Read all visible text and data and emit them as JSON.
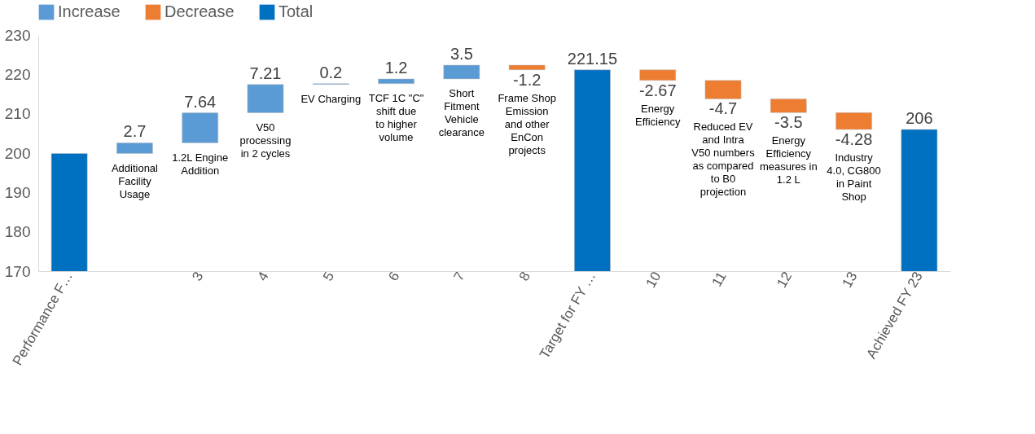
{
  "chart_data": {
    "type": "bar",
    "categories": [
      "Performance F…",
      null,
      "3",
      "4",
      "5",
      "6",
      "7",
      "8",
      "Target for FY …",
      "10",
      "11",
      "12",
      "13",
      "Achieved FY 23"
    ],
    "series": [
      {
        "name": "Increase",
        "color": "#5b9bd5",
        "base": [
          null,
          199.9,
          202.6,
          210.24,
          217.45,
          217.65,
          218.85,
          null,
          null,
          null,
          null,
          null,
          null,
          null
        ],
        "values": [
          null,
          2.7,
          7.64,
          7.21,
          0.2,
          1.2,
          3.5,
          null,
          null,
          null,
          null,
          null,
          null,
          null
        ],
        "value_labels": [
          null,
          "2.7",
          "7.64",
          "7.21",
          "0.2",
          "1.2",
          "3.5",
          null,
          null,
          null,
          null,
          null,
          null,
          null
        ]
      },
      {
        "name": "Decrease",
        "color": "#ed7d31",
        "base": [
          null,
          null,
          null,
          null,
          null,
          null,
          null,
          222.35,
          null,
          221.15,
          218.48,
          213.78,
          210.28,
          null
        ],
        "values": [
          null,
          null,
          null,
          null,
          null,
          null,
          null,
          -1.2,
          null,
          -2.67,
          -4.7,
          -3.5,
          -4.28,
          null
        ],
        "value_labels": [
          null,
          null,
          null,
          null,
          null,
          null,
          null,
          "-1.2",
          null,
          "-2.67",
          "-4.7",
          "-3.5",
          "-4.28",
          null
        ]
      },
      {
        "name": "Total",
        "color": "#0070c0",
        "values": [
          199.9,
          null,
          null,
          null,
          null,
          null,
          null,
          null,
          221.15,
          null,
          null,
          null,
          null,
          206
        ],
        "value_labels": [
          null,
          null,
          null,
          null,
          null,
          null,
          null,
          null,
          "221.15",
          null,
          null,
          null,
          null,
          "206"
        ]
      }
    ],
    "ylim": [
      170,
      230
    ],
    "yticks": [
      170,
      180,
      190,
      200,
      210,
      220,
      230
    ],
    "grid": false,
    "legend": "top",
    "annotations": [
      "Additional Facility Usage",
      "1.2L Engine Addition",
      "V50 processing in 2 cycles",
      "EV Charging",
      "TCF 1C \"C\" shift due to higher volume",
      "Short Fitment Vehicle clearance",
      "Frame Shop Emission and other EnCon projects",
      "Energy Efficiency",
      "Reduced EV and Intra V50 numbers as compared to B0 projection",
      "Energy Efficiency measures in 1.2 L",
      "Industry 4.0, CG800 in Paint Shop"
    ]
  }
}
